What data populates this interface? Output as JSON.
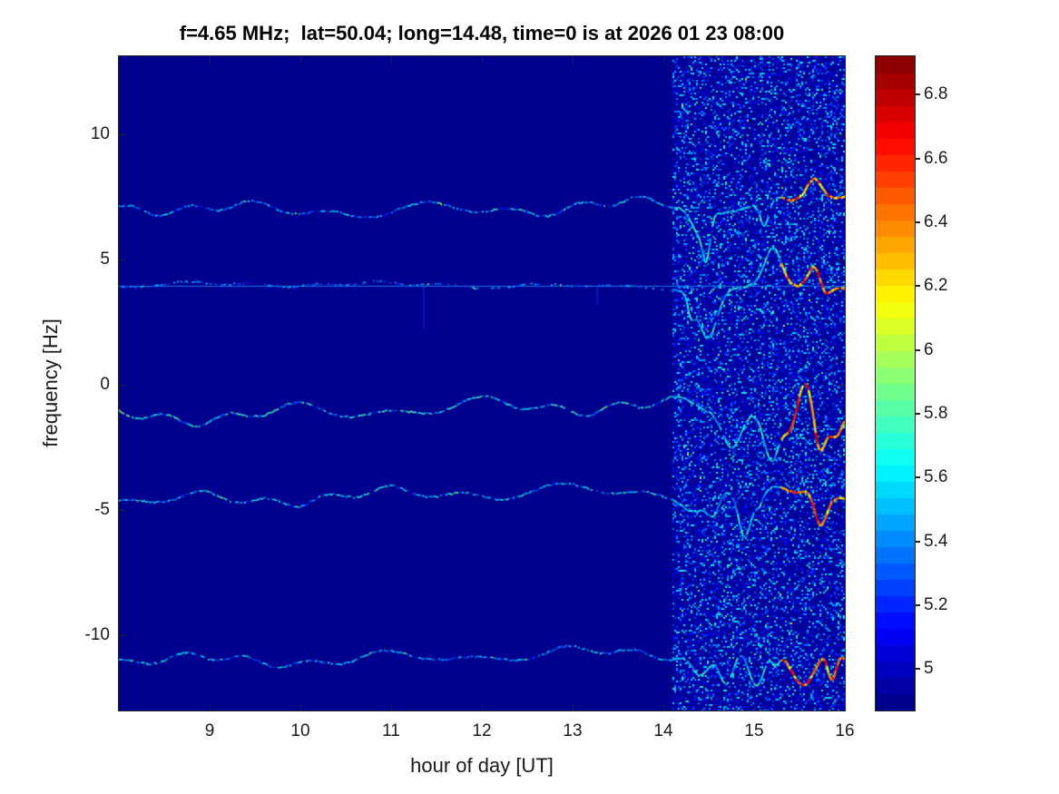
{
  "figure": {
    "title": "f=4.65 MHz;  lat=50.04; long=14.48, time=0 is at 2026 01 23 08:00"
  },
  "chart_data": {
    "type": "heatmap",
    "title": "f=4.65 MHz;  lat=50.04; long=14.48, time=0 is at 2026 01 23 08:00",
    "xlabel": "hour of day [UT]",
    "ylabel": "frequency [Hz]",
    "xlim": [
      8.0,
      16.0
    ],
    "ylim": [
      -13.0,
      13.1
    ],
    "x_ticks": [
      9,
      10,
      11,
      12,
      13,
      14,
      15,
      16
    ],
    "y_ticks": [
      10,
      5,
      0,
      -5,
      -10
    ],
    "colorbar": {
      "colormap": "jet",
      "vmin": 4.87,
      "vmax": 6.92,
      "levels": 40,
      "ticks": [
        5,
        5.2,
        5.4,
        5.6,
        5.8,
        6,
        6.2,
        6.4,
        6.6,
        6.8
      ]
    },
    "background_value": 4.9,
    "noise_region": {
      "hour_start": 14.1,
      "hour_end": 16.0,
      "base_value": 4.93,
      "max_value": 5.75
    },
    "strong_region": {
      "hour_start": 15.3,
      "hour_end": 16.0,
      "value_range": [
        6.05,
        6.75
      ]
    },
    "faint_line": {
      "freq_start": -0.2,
      "freq_end": -0.05,
      "hour_start": 14.1,
      "hour_end": 16.0,
      "value": 5.25
    },
    "traces": [
      {
        "name": "doppler-trace-1",
        "center_freq": 7.1,
        "wiggle_amp_hz": 0.35,
        "value_range": [
          5.15,
          5.75
        ],
        "sparse": false,
        "has_constant_line": false
      },
      {
        "name": "doppler-trace-2",
        "center_freq": 3.95,
        "wiggle_amp_hz": 0.13,
        "value_range": [
          5.15,
          5.6
        ],
        "sparse": true,
        "has_constant_line": true,
        "spikes_hours": [
          11.36,
          13.27
        ],
        "spike_depth_hz": [
          1.7,
          0.8
        ]
      },
      {
        "name": "doppler-trace-3",
        "center_freq": -1.05,
        "wiggle_amp_hz": 0.42,
        "value_range": [
          5.2,
          5.9
        ],
        "sparse": false,
        "has_constant_line": false,
        "hot_start": true
      },
      {
        "name": "doppler-trace-4",
        "center_freq": -4.45,
        "wiggle_amp_hz": 0.36,
        "value_range": [
          5.15,
          5.8
        ],
        "sparse": false,
        "has_constant_line": false
      },
      {
        "name": "doppler-trace-5",
        "center_freq": -10.85,
        "wiggle_amp_hz": 0.32,
        "value_range": [
          5.15,
          5.75
        ],
        "sparse": false,
        "has_constant_line": false
      }
    ]
  }
}
